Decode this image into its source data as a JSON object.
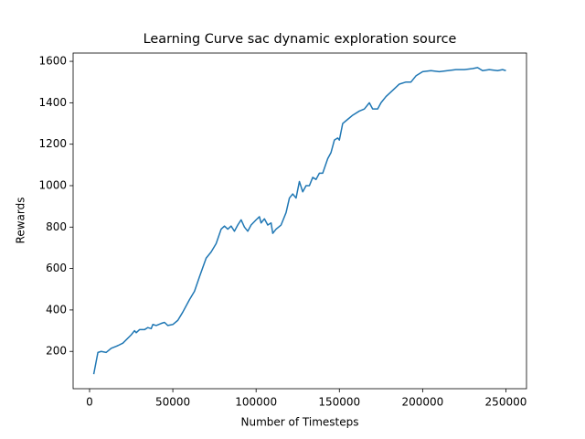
{
  "chart_data": {
    "type": "line",
    "title": "Learning Curve sac dynamic exploration source",
    "x_label": "Number of Timesteps",
    "y_label": "Rewards",
    "x": [
      2500,
      5000,
      7000,
      10000,
      13000,
      17000,
      20000,
      25000,
      27000,
      28000,
      30000,
      33000,
      35000,
      37000,
      38000,
      40000,
      43000,
      45000,
      47000,
      50000,
      53000,
      56000,
      60000,
      63000,
      66000,
      70000,
      73000,
      76000,
      79000,
      81000,
      83000,
      85000,
      87000,
      89000,
      91000,
      93000,
      95000,
      97000,
      100000,
      102000,
      103000,
      105000,
      107000,
      109000,
      110000,
      112000,
      115000,
      118000,
      120000,
      122000,
      124000,
      126000,
      128000,
      130000,
      132000,
      134000,
      136000,
      138000,
      140000,
      143000,
      145000,
      147000,
      149000,
      150000,
      152000,
      155000,
      158000,
      162000,
      165000,
      168000,
      170000,
      173000,
      175000,
      178000,
      182000,
      186000,
      190000,
      193000,
      196000,
      200000,
      205000,
      210000,
      215000,
      220000,
      225000,
      230000,
      233000,
      236000,
      240000,
      245000,
      248000,
      250000
    ],
    "series": [
      {
        "name": "Rewards",
        "color": "#1f77b4",
        "values": [
          90,
          195,
          200,
          195,
          215,
          228,
          240,
          280,
          300,
          290,
          305,
          305,
          315,
          310,
          330,
          325,
          335,
          340,
          325,
          330,
          350,
          390,
          450,
          490,
          560,
          650,
          680,
          720,
          790,
          805,
          790,
          805,
          780,
          810,
          835,
          800,
          780,
          810,
          835,
          850,
          820,
          840,
          810,
          820,
          770,
          790,
          810,
          870,
          940,
          960,
          940,
          1020,
          970,
          1000,
          1000,
          1040,
          1030,
          1060,
          1060,
          1130,
          1160,
          1220,
          1230,
          1220,
          1300,
          1320,
          1340,
          1360,
          1370,
          1400,
          1370,
          1370,
          1400,
          1430,
          1460,
          1490,
          1500,
          1500,
          1530,
          1550,
          1555,
          1550,
          1555,
          1560,
          1560,
          1565,
          1570,
          1555,
          1560,
          1555,
          1560,
          1555
        ]
      }
    ],
    "xlim": [
      -9875,
      262375
    ],
    "ylim": [
      20,
      1640
    ],
    "xticks": [
      0,
      50000,
      100000,
      150000,
      200000,
      250000
    ],
    "yticks": [
      200,
      400,
      600,
      800,
      1000,
      1200,
      1400,
      1600
    ]
  }
}
